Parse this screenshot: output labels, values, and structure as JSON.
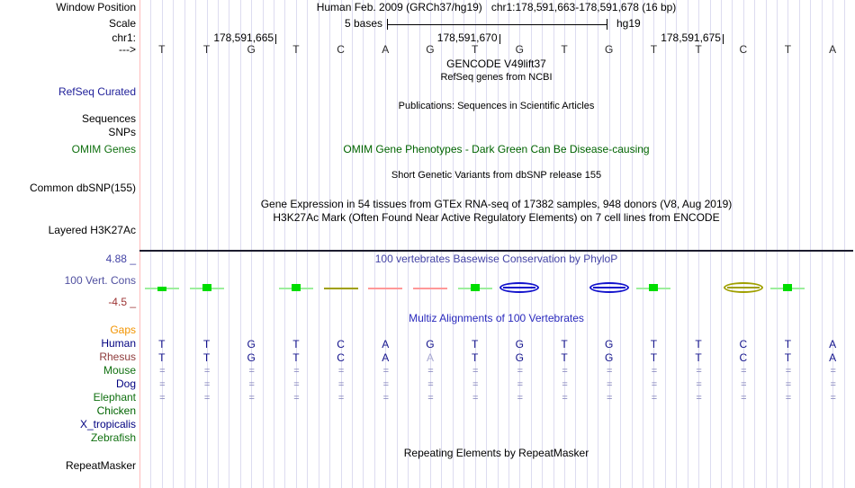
{
  "canvas": {
    "grid_color": "#dddcf0",
    "left_border_color": "#ffbcbc"
  },
  "header": {
    "window_position_label": "Window Position",
    "assembly_title": "Human Feb. 2009 (GRCh37/hg19)",
    "position": "chr1:178,591,663-178,591,678 (16 bp)",
    "scale_label": "Scale",
    "scale_value": "5 bases",
    "scale_assembly": "hg19",
    "chrom_label": "chr1:",
    "strand_label": "--->",
    "coordinate_ticks": [
      {
        "label": "178,591,665",
        "base_index": 3
      },
      {
        "label": "178,591,670",
        "base_index": 8
      },
      {
        "label": "178,591,675",
        "base_index": 13
      }
    ]
  },
  "sequence": {
    "bases": [
      "T",
      "T",
      "G",
      "T",
      "C",
      "A",
      "G",
      "T",
      "G",
      "T",
      "G",
      "T",
      "T",
      "C",
      "T",
      "A"
    ]
  },
  "tracks": {
    "gencode": {
      "title": "GENCODE V49lift37",
      "subtitle": "RefSeq genes from NCBI",
      "left_label": "RefSeq Curated"
    },
    "publications": {
      "title": "Publications: Sequences in Scientific Articles",
      "left_label_1": "Sequences",
      "left_label_2": "SNPs"
    },
    "omim": {
      "title": "OMIM Gene Phenotypes - Dark Green Can Be Disease-causing",
      "left_label": "OMIM Genes"
    },
    "dbsnp": {
      "title": "Short Genetic Variants from dbSNP release 155",
      "left_label": "Common dbSNP(155)"
    },
    "gtex": {
      "title": "Gene Expression in 54 tissues from GTEx RNA-seq of 17382 samples, 948 donors (V8, Aug 2019)"
    },
    "h3k27ac": {
      "title": "H3K27Ac Mark (Often Found Near Active Regulatory Elements) on 7 cell lines from ENCODE",
      "left_label": "Layered H3K27Ac"
    },
    "conservation": {
      "title": "100 vertebrates Basewise Conservation by PhyloP",
      "left_label": "100 Vert. Cons",
      "max_label": "4.88 _",
      "min_label": "-4.5 _",
      "palette": {
        "green_line": "#9cee9c",
        "green_square": "#00dd00",
        "olive": "#a0a000",
        "pink": "#ff9898",
        "blue": "#1212cc"
      },
      "glyphs": [
        {
          "kind": "bar",
          "color": "green_line",
          "square": true,
          "small": true
        },
        {
          "kind": "bar",
          "color": "green_line",
          "square": true
        },
        {
          "kind": "none"
        },
        {
          "kind": "bar",
          "color": "green_line",
          "square": true
        },
        {
          "kind": "bar",
          "color": "olive"
        },
        {
          "kind": "bar",
          "color": "pink"
        },
        {
          "kind": "bar",
          "color": "pink"
        },
        {
          "kind": "bar",
          "color": "green_line",
          "square": true
        },
        {
          "kind": "ellipse",
          "color": "blue"
        },
        {
          "kind": "none"
        },
        {
          "kind": "ellipse",
          "color": "blue"
        },
        {
          "kind": "bar",
          "color": "green_line",
          "square": true
        },
        {
          "kind": "none"
        },
        {
          "kind": "ellipse",
          "color": "olive"
        },
        {
          "kind": "bar",
          "color": "green_line",
          "square": true
        },
        {
          "kind": "none"
        }
      ]
    },
    "multiz": {
      "title": "Multiz Alignments of 100 Vertebrates",
      "rows": [
        {
          "label": "Gaps",
          "label_color": "#f29400",
          "cells": [
            "",
            "",
            "",
            "",
            "",
            "",
            "",
            "",
            "",
            "",
            "",
            "",
            "",
            "",
            "",
            ""
          ]
        },
        {
          "label": "Human",
          "label_color": "#000080",
          "cells": [
            "T",
            "T",
            "G",
            "T",
            "C",
            "A",
            "G",
            "T",
            "G",
            "T",
            "G",
            "T",
            "T",
            "C",
            "T",
            "A"
          ]
        },
        {
          "label": "Rhesus",
          "label_color": "#8e3b3b",
          "cells": [
            "T",
            "T",
            "G",
            "T",
            "C",
            "A",
            "A",
            "T",
            "G",
            "T",
            "G",
            "T",
            "T",
            "C",
            "T",
            "A"
          ],
          "light_cells": [
            6
          ]
        },
        {
          "label": "Mouse",
          "label_color": "#107010",
          "cells": [
            "=",
            "=",
            "=",
            "=",
            "=",
            "=",
            "=",
            "=",
            "=",
            "=",
            "=",
            "=",
            "=",
            "=",
            "=",
            "="
          ]
        },
        {
          "label": "Dog",
          "label_color": "#000080",
          "cells": [
            "=",
            "=",
            "=",
            "=",
            "=",
            "=",
            "=",
            "=",
            "=",
            "=",
            "=",
            "=",
            "=",
            "=",
            "=",
            "="
          ]
        },
        {
          "label": "Elephant",
          "label_color": "#107010",
          "cells": [
            "=",
            "=",
            "=",
            "=",
            "=",
            "=",
            "=",
            "=",
            "=",
            "=",
            "=",
            "=",
            "=",
            "=",
            "=",
            "="
          ]
        },
        {
          "label": "Chicken",
          "label_color": "#006400",
          "cells": [
            "",
            "",
            "",
            "",
            "",
            "",
            "",
            "",
            "",
            "",
            "",
            "",
            "",
            "",
            "",
            ""
          ]
        },
        {
          "label": "X_tropicalis",
          "label_color": "#000080",
          "cells": [
            "",
            "",
            "",
            "",
            "",
            "",
            "",
            "",
            "",
            "",
            "",
            "",
            "",
            "",
            "",
            ""
          ]
        },
        {
          "label": "Zebrafish",
          "label_color": "#107010",
          "cells": [
            "",
            "",
            "",
            "",
            "",
            "",
            "",
            "",
            "",
            "",
            "",
            "",
            "",
            "",
            "",
            ""
          ]
        }
      ]
    },
    "repeatmasker": {
      "title": "Repeating Elements by RepeatMasker",
      "left_label": "RepeatMasker"
    }
  }
}
